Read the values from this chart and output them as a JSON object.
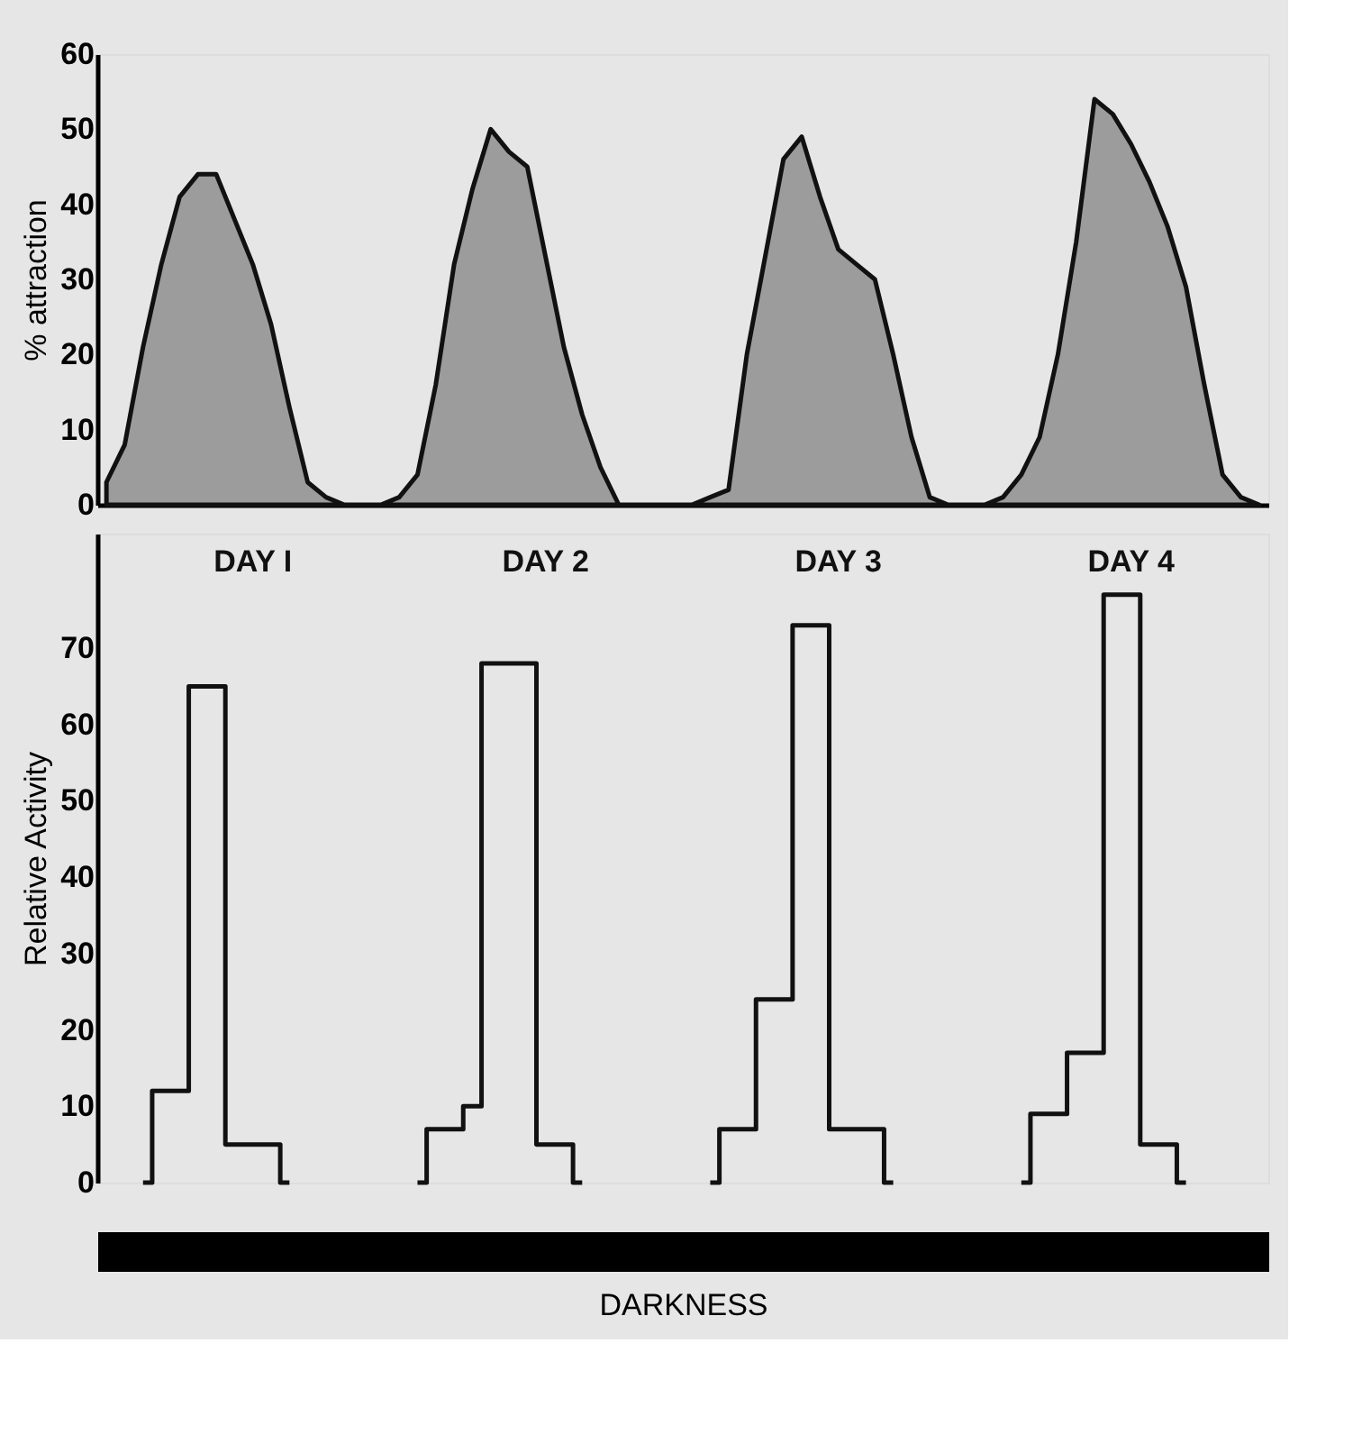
{
  "chart_data": [
    {
      "type": "area",
      "ylabel": "% attraction",
      "categories": [
        null,
        null,
        null,
        null,
        null,
        null,
        null,
        null,
        null,
        null,
        null,
        null,
        null,
        null,
        null,
        null,
        null,
        null,
        null,
        null,
        null,
        null,
        null,
        null,
        null,
        null,
        null,
        null,
        null,
        null,
        null,
        null,
        null,
        null,
        null,
        null,
        null,
        null,
        null,
        null,
        null,
        null,
        null,
        null,
        null,
        null,
        null,
        null,
        null,
        null,
        null,
        null,
        null,
        null,
        null,
        null,
        null,
        null,
        null,
        null,
        null,
        null,
        null,
        null
      ],
      "series": [
        {
          "color": "#9c9c9c",
          "values": [
            3,
            8,
            21,
            32,
            41,
            44,
            44,
            38,
            32,
            24,
            13,
            3,
            1,
            0,
            0,
            0,
            1,
            4,
            16,
            32,
            42,
            50,
            47,
            45,
            33,
            21,
            12,
            5,
            0,
            0,
            0,
            0,
            0,
            1,
            2,
            20,
            33,
            46,
            49,
            41,
            34,
            32,
            30,
            20,
            9,
            1,
            0,
            0,
            0,
            1,
            4,
            9,
            20,
            35,
            54,
            52,
            48,
            43,
            37,
            29,
            16,
            4,
            1,
            0
          ]
        }
      ],
      "ylim": [
        0,
        60
      ],
      "yticks": [
        0,
        10,
        20,
        30,
        40,
        50,
        60
      ],
      "tick_labels": "y",
      "grid": false
    },
    {
      "type": "step",
      "ylabel": "Relative  Activity",
      "xlabel": "DARKNESS",
      "annotations": [
        "DAY I",
        "DAY 2",
        "DAY 3",
        "DAY 4"
      ],
      "categories": [
        null,
        null,
        null,
        null,
        null,
        null,
        null,
        null,
        null,
        null,
        null,
        null,
        null,
        null,
        null,
        null,
        null,
        null,
        null,
        null,
        null,
        null,
        null,
        null,
        null,
        null,
        null,
        null,
        null,
        null,
        null,
        null,
        null,
        null,
        null,
        null,
        null,
        null,
        null,
        null,
        null,
        null,
        null,
        null,
        null,
        null,
        null,
        null,
        null,
        null,
        null,
        null,
        null,
        null,
        null,
        null,
        null,
        null,
        null,
        null,
        null,
        null,
        null,
        null
      ],
      "series": [
        {
          "color": "#111111",
          "values": [
            null,
            null,
            0,
            12,
            12,
            65,
            65,
            5,
            5,
            5,
            0,
            null,
            null,
            null,
            null,
            null,
            null,
            0,
            7,
            7,
            10,
            68,
            68,
            68,
            5,
            5,
            0,
            null,
            null,
            null,
            null,
            null,
            null,
            0,
            7,
            7,
            24,
            24,
            73,
            73,
            7,
            7,
            7,
            0,
            null,
            null,
            null,
            null,
            null,
            null,
            0,
            9,
            9,
            17,
            17,
            77,
            77,
            5,
            5,
            0,
            null,
            null,
            null,
            null
          ]
        }
      ],
      "ylim": [
        0,
        85
      ],
      "yticks": [
        0,
        10,
        20,
        30,
        40,
        50,
        60,
        70
      ],
      "tick_labels": "y",
      "grid": false
    }
  ]
}
